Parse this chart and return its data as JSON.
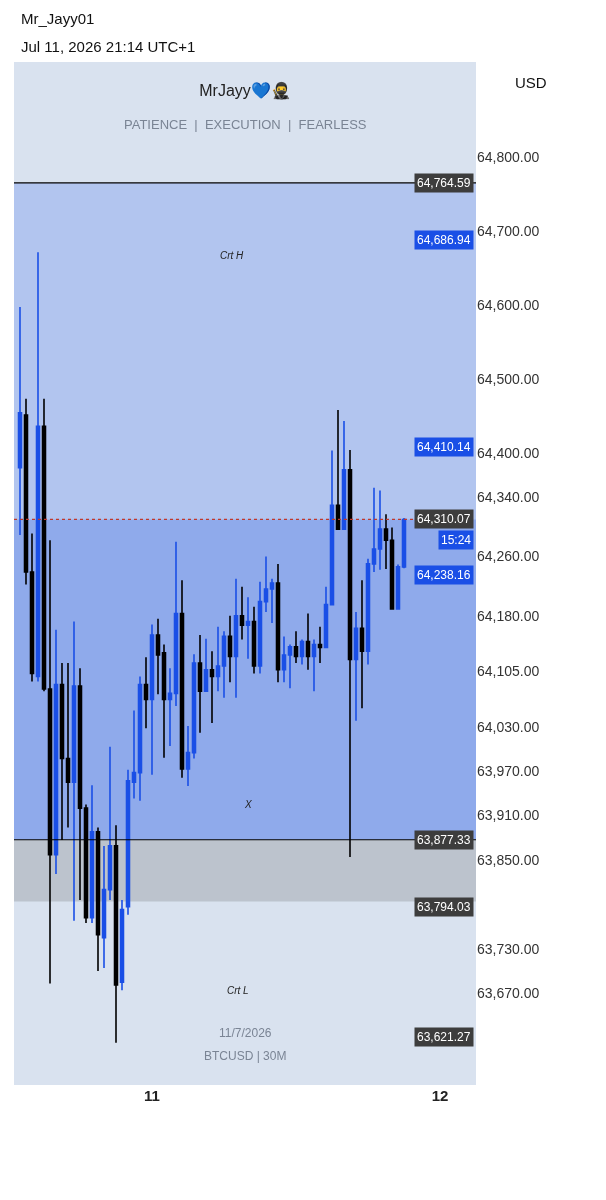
{
  "chart_data": {
    "type": "candlestick",
    "title": "MrJayy💙🥷",
    "subtitle": "PATIENCE  |  EXECUTION  |  FEARLESS",
    "x": [
      "2026-07-10T13:00",
      "2026-07-10T13:30",
      "2026-07-10T14:00",
      "2026-07-10T14:30",
      "2026-07-10T15:00",
      "2026-07-10T15:30",
      "2026-07-10T16:00",
      "2026-07-10T16:30",
      "2026-07-10T17:00",
      "2026-07-10T17:30",
      "2026-07-10T18:00",
      "2026-07-10T18:30",
      "2026-07-10T19:00",
      "2026-07-10T19:30",
      "2026-07-10T20:00",
      "2026-07-10T20:30",
      "2026-07-10T21:00",
      "2026-07-10T21:30",
      "2026-07-10T22:00",
      "2026-07-10T22:30",
      "2026-07-10T23:00",
      "2026-07-10T23:30",
      "2026-07-11T00:00",
      "2026-07-11T00:30",
      "2026-07-11T01:00",
      "2026-07-11T01:30",
      "2026-07-11T02:00",
      "2026-07-11T02:30",
      "2026-07-11T03:00",
      "2026-07-11T03:30",
      "2026-07-11T04:00",
      "2026-07-11T04:30",
      "2026-07-11T05:00",
      "2026-07-11T05:30",
      "2026-07-11T06:00",
      "2026-07-11T06:30",
      "2026-07-11T07:00",
      "2026-07-11T07:30",
      "2026-07-11T08:00",
      "2026-07-11T08:30",
      "2026-07-11T09:00",
      "2026-07-11T09:30",
      "2026-07-11T10:00",
      "2026-07-11T10:30",
      "2026-07-11T11:00",
      "2026-07-11T11:30",
      "2026-07-11T12:00",
      "2026-07-11T12:30",
      "2026-07-11T13:00",
      "2026-07-11T13:30",
      "2026-07-11T14:00",
      "2026-07-11T14:30",
      "2026-07-11T15:00",
      "2026-07-11T15:30",
      "2026-07-11T16:00",
      "2026-07-11T16:30",
      "2026-07-11T17:00",
      "2026-07-11T17:30",
      "2026-07-11T18:00",
      "2026-07-11T18:30",
      "2026-07-11T19:00",
      "2026-07-11T19:30",
      "2026-07-11T20:00",
      "2026-07-11T20:30",
      "2026-07-11T21:00"
    ],
    "ohlc": [
      [
        64380,
        64597,
        64289,
        64454
      ],
      [
        64451,
        64473,
        64222,
        64239
      ],
      [
        64239,
        64291,
        64091,
        64102
      ],
      [
        64098,
        64671,
        64091,
        64436
      ],
      [
        64436,
        64473,
        64078,
        64081
      ],
      [
        64081,
        64282,
        63683,
        63857
      ],
      [
        63857,
        64161,
        63831,
        64087
      ],
      [
        64087,
        64116,
        63877,
        63987
      ],
      [
        63987,
        64116,
        63894,
        63955
      ],
      [
        63955,
        64172,
        63768,
        64085
      ],
      [
        64085,
        64109,
        63796,
        63920
      ],
      [
        63920,
        63925,
        63765,
        63772
      ],
      [
        63772,
        63951,
        63765,
        63888
      ],
      [
        63888,
        63894,
        63700,
        63749
      ],
      [
        63745,
        63869,
        63704,
        63810
      ],
      [
        63810,
        64003,
        63796,
        63869
      ],
      [
        63869,
        63897,
        63603,
        63681
      ],
      [
        63685,
        63796,
        63674,
        63783
      ],
      [
        63787,
        63972,
        63776,
        63957
      ],
      [
        63955,
        64052,
        63933,
        63968
      ],
      [
        63968,
        64098,
        63930,
        64087
      ],
      [
        64087,
        64124,
        64028,
        64067
      ],
      [
        64067,
        64168,
        63965,
        64154
      ],
      [
        64154,
        64176,
        64074,
        64127
      ],
      [
        64130,
        64141,
        63988,
        64067
      ],
      [
        64067,
        64109,
        64004,
        64075
      ],
      [
        64075,
        64280,
        64058,
        64183
      ],
      [
        64183,
        64228,
        63961,
        63973
      ],
      [
        63973,
        64031,
        63950,
        63995
      ],
      [
        63995,
        64128,
        63987,
        64116
      ],
      [
        64116,
        64154,
        64022,
        64078
      ],
      [
        64078,
        64149,
        64078,
        64107
      ],
      [
        64107,
        64132,
        64035,
        64098
      ],
      [
        64098,
        64165,
        64078,
        64112
      ],
      [
        64112,
        64159,
        64069,
        64152
      ],
      [
        64152,
        64180,
        64090,
        64125
      ],
      [
        64125,
        64230,
        64069,
        64180
      ],
      [
        64180,
        64219,
        64148,
        64167
      ],
      [
        64167,
        64205,
        64122,
        64172
      ],
      [
        64172,
        64192,
        64102,
        64112
      ],
      [
        64112,
        64226,
        64102,
        64199
      ],
      [
        64199,
        64260,
        64185,
        64216
      ],
      [
        64216,
        64230,
        64170,
        64224
      ],
      [
        64224,
        64250,
        64090,
        64107
      ],
      [
        64107,
        64152,
        64090,
        64127
      ],
      [
        64127,
        64141,
        64082,
        64138
      ],
      [
        64138,
        64159,
        64116,
        64125
      ],
      [
        64125,
        64148,
        64114,
        64145
      ],
      [
        64145,
        64183,
        64107,
        64125
      ],
      [
        64125,
        64148,
        64078,
        64141
      ],
      [
        64141,
        64165,
        64116,
        64137
      ],
      [
        64137,
        64219,
        64137,
        64195
      ],
      [
        64195,
        64403,
        64195,
        64329
      ],
      [
        64329,
        64458,
        64296,
        64297
      ],
      [
        64297,
        64443,
        64296,
        64377
      ],
      [
        64377,
        64404,
        63854,
        64121
      ],
      [
        64121,
        64185,
        64038,
        64163
      ],
      [
        64163,
        64228,
        64055,
        64132
      ],
      [
        64132,
        64257,
        64114,
        64250
      ],
      [
        64250,
        64353,
        64239,
        64270
      ],
      [
        64270,
        64349,
        64242,
        64297
      ],
      [
        64297,
        64317,
        64243,
        64282
      ],
      [
        64282,
        64299,
        64188,
        64189
      ],
      [
        64189,
        64249,
        64188,
        64246
      ],
      [
        64246,
        64312,
        64244,
        64310
      ]
    ],
    "colors": [
      "#1a4fe6",
      "#000000",
      "#000000",
      "#1a4fe6",
      "#000000",
      "#000000",
      "#1a4fe6",
      "#000000",
      "#000000",
      "#1a4fe6",
      "#000000",
      "#000000",
      "#1a4fe6",
      "#000000",
      "#1a4fe6",
      "#1a4fe6",
      "#000000",
      "#1a4fe6",
      "#1a4fe6",
      "#1a4fe6",
      "#1a4fe6",
      "#000000",
      "#1a4fe6",
      "#000000",
      "#000000",
      "#1a4fe6",
      "#1a4fe6",
      "#000000",
      "#1a4fe6",
      "#1a4fe6",
      "#000000",
      "#1a4fe6",
      "#000000",
      "#1a4fe6",
      "#1a4fe6",
      "#000000",
      "#1a4fe6",
      "#000000",
      "#1a4fe6",
      "#000000",
      "#1a4fe6",
      "#1a4fe6",
      "#1a4fe6",
      "#000000",
      "#1a4fe6",
      "#1a4fe6",
      "#000000",
      "#1a4fe6",
      "#000000",
      "#1a4fe6",
      "#000000",
      "#1a4fe6",
      "#1a4fe6",
      "#000000",
      "#1a4fe6",
      "#000000",
      "#1a4fe6",
      "#000000",
      "#1a4fe6",
      "#1a4fe6",
      "#1a4fe6",
      "#000000",
      "#000000",
      "#1a4fe6",
      "#1a4fe6"
    ],
    "xlim": [
      "2026-07-10T12:30",
      "2026-07-12T03:00"
    ],
    "xticks": [
      {
        "value": "2026-07-11",
        "label": "11"
      },
      {
        "value": "2026-07-12",
        "label": "12"
      }
    ],
    "ylim": [
      63546,
      64928
    ],
    "yticks": [
      {
        "value": 64800,
        "label": "64,800.00"
      },
      {
        "value": 64700,
        "label": "64,700.00"
      },
      {
        "value": 64600,
        "label": "64,600.00"
      },
      {
        "value": 64500,
        "label": "64,500.00"
      },
      {
        "value": 64400,
        "label": "64,400.00"
      },
      {
        "value": 64340,
        "label": "64,340.00"
      },
      {
        "value": 64260,
        "label": "64,260.00"
      },
      {
        "value": 64180,
        "label": "64,180.00"
      },
      {
        "value": 64105,
        "label": "64,105.00"
      },
      {
        "value": 64030,
        "label": "64,030.00"
      },
      {
        "value": 63970,
        "label": "63,970.00"
      },
      {
        "value": 63910,
        "label": "63,910.00"
      },
      {
        "value": 63850,
        "label": "63,850.00"
      },
      {
        "value": 63730,
        "label": "63,730.00"
      },
      {
        "value": 63670,
        "label": "63,670.00"
      }
    ],
    "grid": false,
    "bands": [
      {
        "axis": "y",
        "from": 63877.33,
        "to": 64764.59,
        "color": "#b2c5ef"
      },
      {
        "axis": "y",
        "from": 63877.33,
        "to": 64310.07,
        "color": "#8faaeb"
      },
      {
        "axis": "y",
        "from": 63794.03,
        "to": 63877.33,
        "color": "#bcc3cd"
      }
    ],
    "ref_lines": [
      {
        "axis": "y",
        "value": 64764.59,
        "label": "64,764.59",
        "color": "#000000",
        "line_style": "solid"
      },
      {
        "axis": "y",
        "value": 63877.33,
        "label": "63,877.33",
        "color": "#000000",
        "line_style": "solid"
      },
      {
        "axis": "y",
        "value": 64310.07,
        "label": "64,310.07",
        "color": "#c0392b",
        "line_style": "dotted"
      }
    ],
    "annotations": [
      "Mr_Jayy01",
      "Jul 11, 2026 21:14 UTC+1",
      "USD",
      "11/7/2026",
      "BTCUSD | 30M",
      "Crt H",
      "X",
      "Crt L",
      "64,686.94",
      "64,410.14",
      "15:24",
      "64,238.16",
      "63,794.03",
      "63,621.27"
    ]
  }
}
